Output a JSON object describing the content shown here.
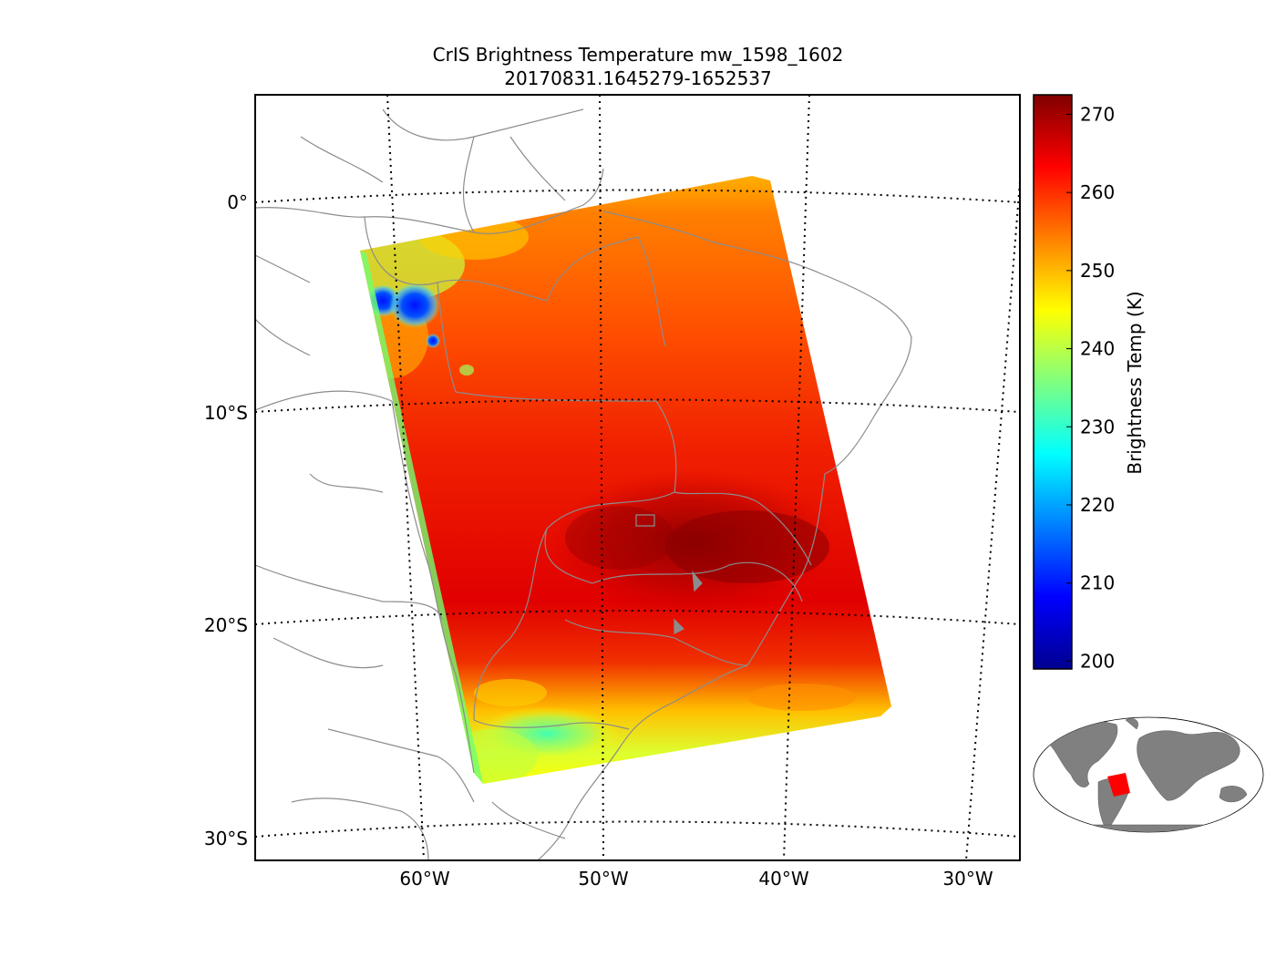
{
  "chart_data": {
    "type": "heatmap",
    "title_line1": "CrIS Brightness Temperature mw_1598_1602",
    "title_line2": "20170831.1645279-1652537",
    "lat_ticks": [
      "0°",
      "10°S",
      "20°S",
      "30°S"
    ],
    "lon_ticks": [
      "60°W",
      "50°W",
      "40°W",
      "30°W"
    ],
    "lat_range": [
      -31,
      5
    ],
    "lon_range": [
      -70,
      -28
    ],
    "colorbar": {
      "label": "Brightness Temp (K)",
      "min": 199,
      "max": 272.5,
      "ticks": [
        "200",
        "210",
        "220",
        "230",
        "240",
        "250",
        "260",
        "270"
      ],
      "tick_values": [
        200,
        210,
        220,
        230,
        240,
        250,
        260,
        270
      ]
    },
    "swath_extent": {
      "corners_lonlat": [
        [
          -63.5,
          -2.2
        ],
        [
          -41.0,
          1.0
        ],
        [
          -34.0,
          -24.2
        ],
        [
          -57.0,
          -27.4
        ]
      ],
      "background_level_K": 262,
      "hot_core_K": 271,
      "cold_cloud_min_K": 205,
      "southern_band_K": 245
    },
    "colors": {
      "map_lines": "#8c8c8c",
      "inset_land": "#808080",
      "inset_swath": "#ff0000"
    }
  }
}
